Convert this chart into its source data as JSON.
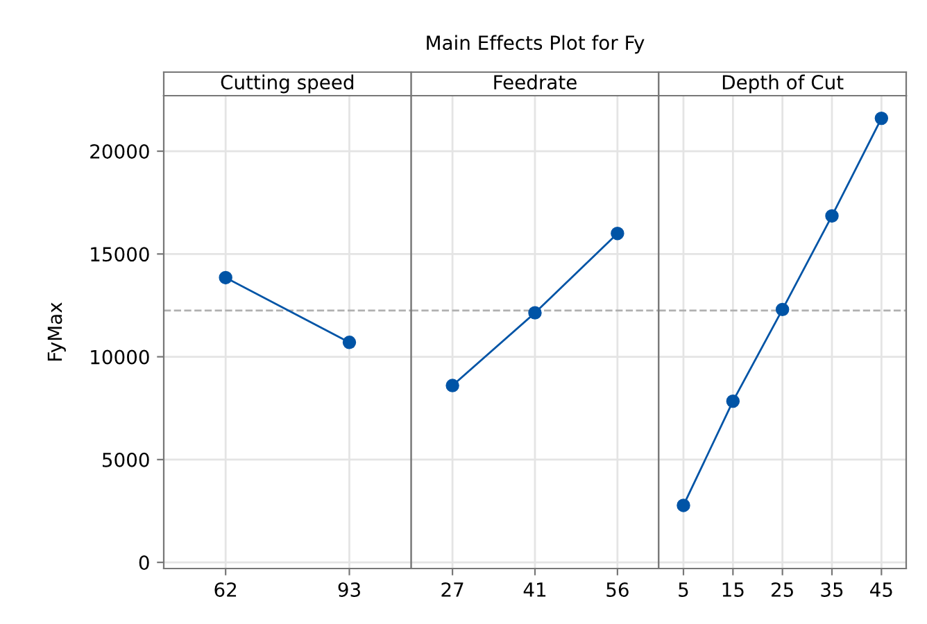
{
  "chart_data": [
    {
      "type": "line",
      "title": "Cutting speed",
      "annotations": [
        "Main Effects Plot for Fy"
      ],
      "ylabel": "FyMax",
      "categories": [
        "62",
        "93"
      ],
      "series": [
        {
          "color": "#0054a6",
          "values": [
            13850,
            10700
          ]
        }
      ],
      "ylim": [
        -300,
        22700
      ],
      "yticks": [
        0,
        5000,
        10000,
        15000,
        20000
      ],
      "ref_lines": [
        {
          "axis": "y",
          "value": 12250,
          "color": "#b0b0b0",
          "line_style": "dashed"
        }
      ],
      "grid": true,
      "marker": "circle",
      "line_style": "solid"
    },
    {
      "type": "line",
      "title": "Feedrate",
      "categories": [
        "27",
        "41",
        "56"
      ],
      "series": [
        {
          "color": "#0054a6",
          "values": [
            8600,
            12140,
            16000
          ]
        }
      ],
      "ylim": [
        -300,
        22700
      ],
      "yticks": [
        0,
        5000,
        10000,
        15000,
        20000
      ],
      "tick_labels": "x",
      "ref_lines": [
        {
          "axis": "y",
          "value": 12250,
          "color": "#b0b0b0",
          "line_style": "dashed"
        }
      ],
      "grid": true,
      "marker": "circle",
      "line_style": "solid"
    },
    {
      "type": "line",
      "title": "Depth of Cut",
      "categories": [
        "5",
        "15",
        "25",
        "35",
        "45"
      ],
      "series": [
        {
          "color": "#0054a6",
          "values": [
            2770,
            7840,
            12300,
            16850,
            21600
          ]
        }
      ],
      "ylim": [
        -300,
        22700
      ],
      "yticks": [
        0,
        5000,
        10000,
        15000,
        20000
      ],
      "tick_labels": "x",
      "ref_lines": [
        {
          "axis": "y",
          "value": 12250,
          "color": "#b0b0b0",
          "line_style": "dashed"
        }
      ],
      "grid": true,
      "marker": "circle",
      "line_style": "solid"
    }
  ]
}
